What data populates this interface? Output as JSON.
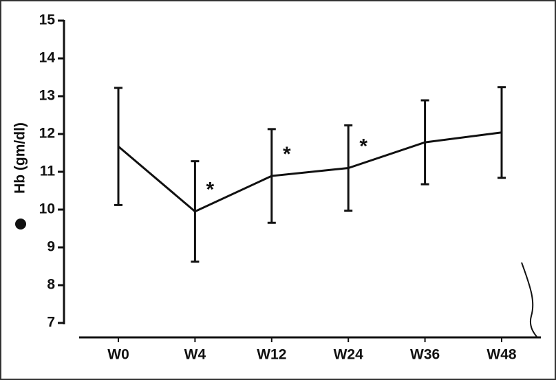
{
  "chart_data": {
    "type": "line",
    "y_label": "Hb (gm/dl)",
    "categories": [
      "W0",
      "W4",
      "W12",
      "W24",
      "W36",
      "W48"
    ],
    "values": [
      11.67,
      9.95,
      10.89,
      11.1,
      11.78,
      12.04
    ],
    "errors": [
      1.55,
      1.33,
      1.24,
      1.13,
      1.11,
      1.2
    ],
    "significance": [
      null,
      "*",
      "*",
      "*",
      null,
      null
    ],
    "color": "#111111",
    "ylim": [
      7,
      15
    ],
    "yticks": [
      7,
      8,
      9,
      10,
      11,
      12,
      13,
      14,
      15
    ]
  }
}
